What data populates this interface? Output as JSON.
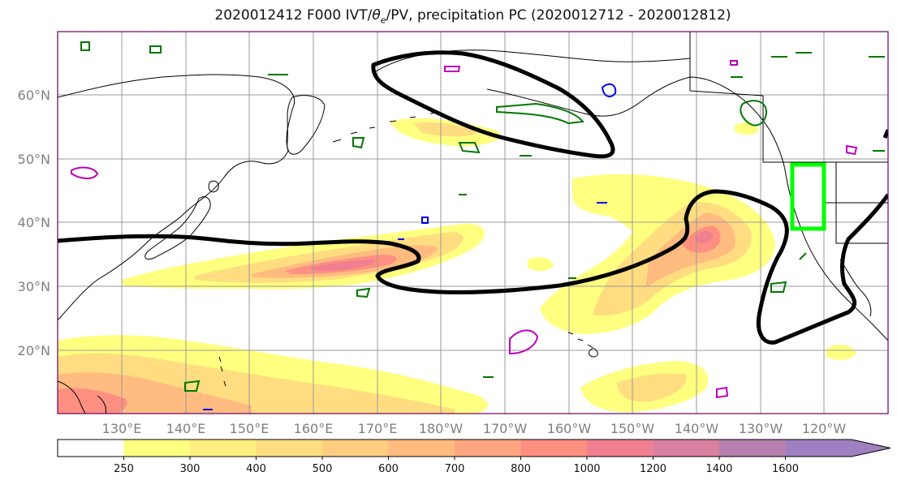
{
  "title": {
    "prefix": "2020012412 F000 IVT/",
    "theta": "θ",
    "theta_sub": "e",
    "suffix": "/PV, precipitation PC (2020012712 - 2020012812)"
  },
  "axes": {
    "lat_labels": [
      "60°N",
      "50°N",
      "40°N",
      "30°N",
      "20°N"
    ],
    "lon_labels": [
      "130°E",
      "140°E",
      "150°E",
      "160°E",
      "170°E",
      "180°W",
      "170°W",
      "160°W",
      "150°W",
      "140°W",
      "130°W",
      "120°W"
    ]
  },
  "colorbar": {
    "ticks": [
      "250",
      "300",
      "400",
      "500",
      "600",
      "700",
      "800",
      "1000",
      "1200",
      "1400",
      "1600"
    ],
    "colors": [
      "#ffffff",
      "#ffff80",
      "#ffee80",
      "#ffdd80",
      "#ffcc80",
      "#ffbb80",
      "#ffa680",
      "#ff8f80",
      "#f08090",
      "#d880a0",
      "#b880b0",
      "#a080c0",
      "#a080c0"
    ]
  },
  "colors": {
    "ivt_contour": "#000000",
    "box": "#00ff00",
    "theta_contour": "#007700",
    "pv_contour": "#bb00bb",
    "blue_contour": "#0000ee"
  }
}
